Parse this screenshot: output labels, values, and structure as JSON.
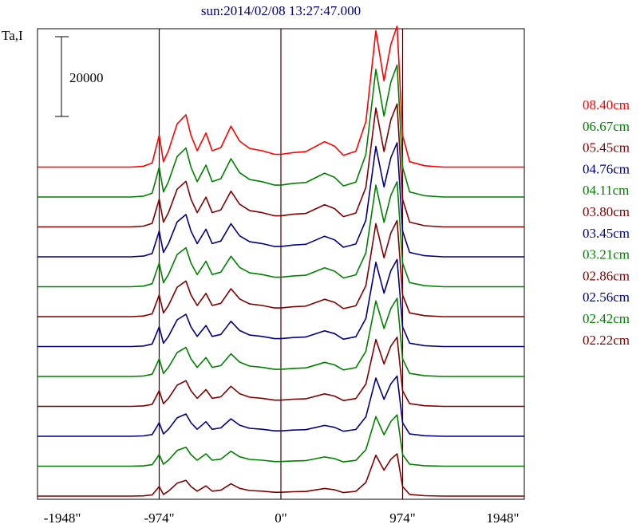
{
  "chart_data": {
    "type": "line",
    "title": "sun:2014/02/08 13:27:47.000",
    "ylabel": "Ta,I",
    "scale_bar": "20000",
    "xlim": [
      -1948,
      1948
    ],
    "x_ticks": [
      {
        "value": -1948,
        "label": "-1948\""
      },
      {
        "value": -974,
        "label": "-974\""
      },
      {
        "value": 0,
        "label": "0\""
      },
      {
        "value": 974,
        "label": "974\""
      },
      {
        "value": 1948,
        "label": "1948\""
      }
    ],
    "vertical_markers": [
      -974,
      0,
      974
    ],
    "series": [
      {
        "name": "08.40cm",
        "color": "#ff0000"
      },
      {
        "name": "06.67cm",
        "color": "#008000"
      },
      {
        "name": "05.45cm",
        "color": "#800000"
      },
      {
        "name": "04.76cm",
        "color": "#000080"
      },
      {
        "name": "04.11cm",
        "color": "#008000"
      },
      {
        "name": "03.80cm",
        "color": "#800000"
      },
      {
        "name": "03.45cm",
        "color": "#000080"
      },
      {
        "name": "03.21cm",
        "color": "#008000"
      },
      {
        "name": "02.86cm",
        "color": "#800000"
      },
      {
        "name": "02.56cm",
        "color": "#000080"
      },
      {
        "name": "02.42cm",
        "color": "#008000"
      },
      {
        "name": "02.22cm",
        "color": "#800000"
      }
    ],
    "profile_points": [
      [
        -1948,
        0
      ],
      [
        -1200,
        0
      ],
      [
        -1100,
        200
      ],
      [
        -1030,
        900
      ],
      [
        -974,
        7000
      ],
      [
        -940,
        1200
      ],
      [
        -900,
        3600
      ],
      [
        -830,
        9500
      ],
      [
        -760,
        11500
      ],
      [
        -720,
        7000
      ],
      [
        -670,
        3600
      ],
      [
        -600,
        7500
      ],
      [
        -550,
        3600
      ],
      [
        -480,
        4300
      ],
      [
        -400,
        9000
      ],
      [
        -330,
        5700
      ],
      [
        -250,
        4100
      ],
      [
        -150,
        3600
      ],
      [
        -50,
        2800
      ],
      [
        0,
        2800
      ],
      [
        100,
        3200
      ],
      [
        200,
        3400
      ],
      [
        350,
        5600
      ],
      [
        430,
        4600
      ],
      [
        500,
        2600
      ],
      [
        600,
        3500
      ],
      [
        680,
        10000
      ],
      [
        760,
        30000
      ],
      [
        825,
        19000
      ],
      [
        880,
        27000
      ],
      [
        930,
        31000
      ],
      [
        974,
        7000
      ],
      [
        1030,
        1200
      ],
      [
        1150,
        300
      ],
      [
        1300,
        0
      ],
      [
        1948,
        0
      ]
    ]
  }
}
